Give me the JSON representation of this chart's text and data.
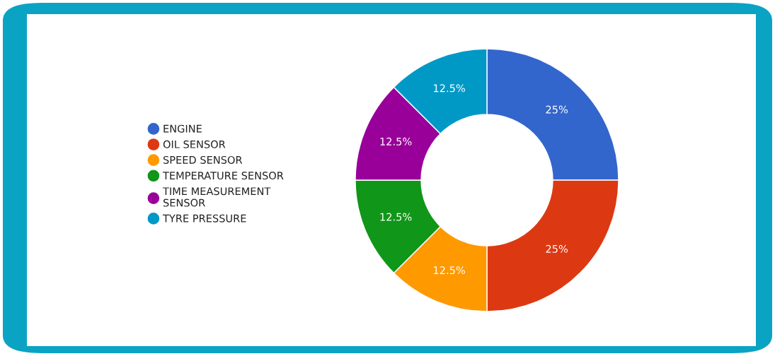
{
  "chart_data": {
    "type": "donut",
    "categories": [
      "ENGINE",
      "OIL SENSOR",
      "SPEED SENSOR",
      "TEMPERATURE SENSOR",
      "TIME MEASUREMENT SENSOR",
      "TYRE PRESSURE"
    ],
    "values": [
      25,
      25,
      12.5,
      12.5,
      12.5,
      12.5
    ],
    "value_labels": [
      "25%",
      "25%",
      "12.5%",
      "12.5%",
      "12.5%",
      "12.5%"
    ],
    "colors": [
      "#3366cc",
      "#dc3912",
      "#ff9900",
      "#109618",
      "#990099",
      "#0099c6"
    ],
    "legend": "left"
  }
}
